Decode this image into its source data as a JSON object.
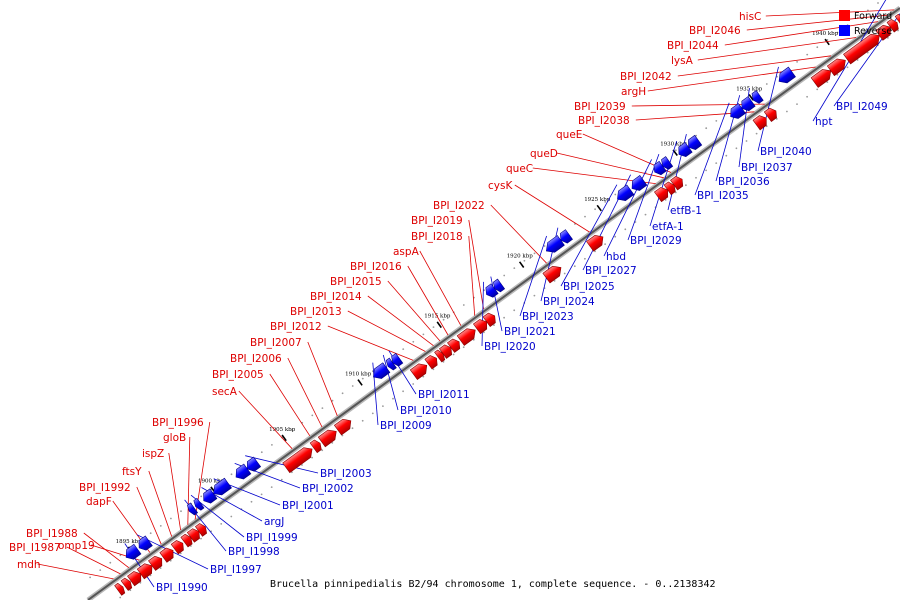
{
  "caption": "Brucella pinnipedialis B2/94 chromosome 1, complete sequence. - 0..2138342",
  "legend": [
    {
      "label": "Forward",
      "color": "#ff0000"
    },
    {
      "label": "Reverse",
      "color": "#0000ff"
    }
  ],
  "colors": {
    "forward": "#ff0000",
    "reverse": "#0000ff",
    "forward_text": "#dd0000",
    "reverse_text": "#0000cc"
  },
  "scale_ticks": [
    "1895 kbp",
    "1900 kbp",
    "1905 kbp",
    "1910 kbp",
    "1915 kbp",
    "1920 kbp",
    "1925 kbp",
    "1930 kbp",
    "1935 kbp",
    "1940 kbp",
    "1945 kbp",
    "1950 kbp"
  ],
  "forward_genes": [
    "mdh",
    "BPI_I1987",
    "BPI_I1988",
    "omp19",
    "dapF",
    "BPI_I1992",
    "ftsY",
    "ispZ",
    "gloB",
    "BPI_I1996",
    "secA",
    "BPI_I2005",
    "BPI_I2006",
    "BPI_I2007",
    "BPI_I2012",
    "BPI_I2013",
    "BPI_I2014",
    "BPI_I2015",
    "BPI_I2016",
    "aspA",
    "BPI_I2018",
    "BPI_I2019",
    "BPI_I2022",
    "cysK",
    "queC",
    "queD",
    "queE",
    "BPI_I2038",
    "BPI_I2039",
    "argH",
    "BPI_I2042",
    "lysA",
    "BPI_I2044",
    "BPI_I2046",
    "hisC"
  ],
  "reverse_genes": [
    "BPI_I1990",
    "BPI_I1997",
    "BPI_I1998",
    "BPI_I1999",
    "argJ",
    "BPI_I2001",
    "BPI_I2002",
    "BPI_I2003",
    "BPI_I2009",
    "BPI_I2010",
    "BPI_I2011",
    "BPI_I2020",
    "BPI_I2021",
    "BPI_I2023",
    "BPI_I2024",
    "BPI_I2025",
    "BPI_I2027",
    "hbd",
    "BPI_I2029",
    "etfA-1",
    "etfB-1",
    "BPI_I2035",
    "BPI_I2036",
    "BPI_I2037",
    "BPI_I2040",
    "hpt",
    "BPI_I2049"
  ]
}
